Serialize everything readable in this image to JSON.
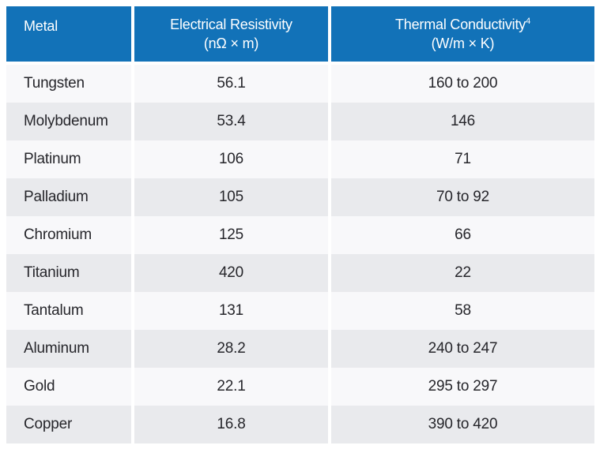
{
  "table": {
    "columns": [
      {
        "label": "Metal",
        "unit": ""
      },
      {
        "label": "Electrical Resistivity",
        "unit": "(nΩ × m)"
      },
      {
        "label": "Thermal Conductivity",
        "footnote_marker": "4",
        "unit": "(W/m × K)"
      }
    ],
    "rows": [
      {
        "metal": "Tungsten",
        "resistivity": "56.1",
        "conductivity": "160 to 200"
      },
      {
        "metal": "Molybdenum",
        "resistivity": "53.4",
        "conductivity": "146"
      },
      {
        "metal": "Platinum",
        "resistivity": "106",
        "conductivity": "71"
      },
      {
        "metal": "Palladium",
        "resistivity": "105",
        "conductivity": "70 to 92"
      },
      {
        "metal": "Chromium",
        "resistivity": "125",
        "conductivity": "66"
      },
      {
        "metal": "Titanium",
        "resistivity": "420",
        "conductivity": "22"
      },
      {
        "metal": "Tantalum",
        "resistivity": "131",
        "conductivity": "58"
      },
      {
        "metal": "Aluminum",
        "resistivity": "28.2",
        "conductivity": "240 to 247"
      },
      {
        "metal": "Gold",
        "resistivity": "22.1",
        "conductivity": "295 to 297"
      },
      {
        "metal": "Copper",
        "resistivity": "16.8",
        "conductivity": "390 to 420"
      }
    ],
    "colors": {
      "header_bg": "#1272B8",
      "header_text": "#FFFFFF",
      "row_light": "#F8F8FA",
      "row_dark": "#E9EAED",
      "body_text": "#26262B"
    }
  },
  "chart_data": {
    "type": "table",
    "title": "",
    "columns": [
      "Metal",
      "Electrical Resistivity (nΩ × m)",
      "Thermal Conductivity⁴ (W/m × K)"
    ],
    "rows": [
      [
        "Tungsten",
        "56.1",
        "160 to 200"
      ],
      [
        "Molybdenum",
        "53.4",
        "146"
      ],
      [
        "Platinum",
        "106",
        "71"
      ],
      [
        "Palladium",
        "105",
        "70 to 92"
      ],
      [
        "Chromium",
        "125",
        "66"
      ],
      [
        "Titanium",
        "420",
        "22"
      ],
      [
        "Tantalum",
        "131",
        "58"
      ],
      [
        "Aluminum",
        "28.2",
        "240 to 247"
      ],
      [
        "Gold",
        "22.1",
        "295 to 297"
      ],
      [
        "Copper",
        "16.8",
        "390 to 420"
      ]
    ]
  }
}
